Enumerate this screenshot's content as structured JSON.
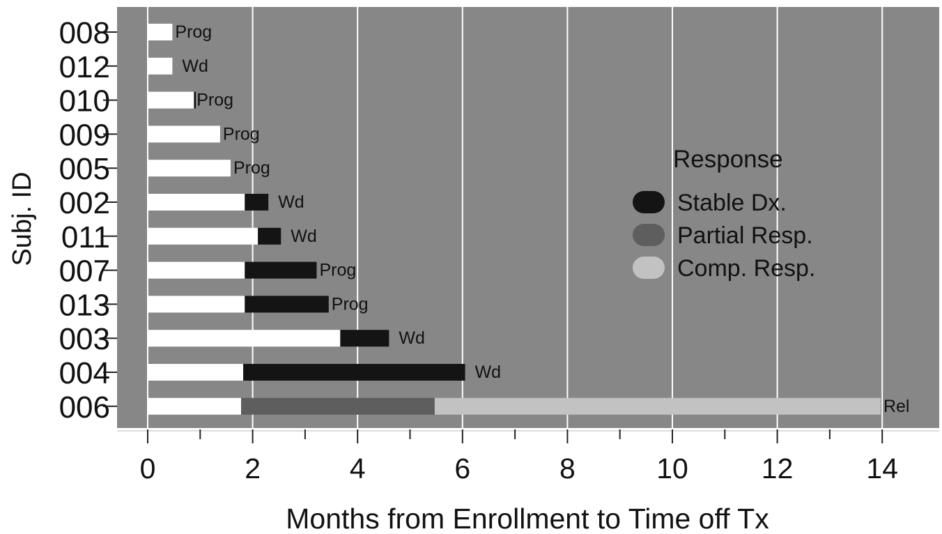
{
  "chart_data": {
    "type": "bar",
    "orientation": "horizontal-stacked",
    "xlabel": "Months from Enrollment to Time off Tx",
    "ylabel": "Subj. ID",
    "xlim": [
      -0.6,
      15.1
    ],
    "xticks_major": [
      0,
      2,
      4,
      6,
      8,
      10,
      12,
      14
    ],
    "xticks_minor": [
      1,
      3,
      5,
      7,
      9,
      11,
      13
    ],
    "grid": true,
    "legend": {
      "title": "Response",
      "placement": "center-right",
      "entries": [
        "Stable Dx.",
        "Partial Resp.",
        "Comp. Resp."
      ]
    },
    "colors": {
      "panel": "#878787",
      "grid": "#ffffff",
      "treatment": "#ffffff",
      "Stable Dx.": "#141414",
      "Partial Resp.": "#5e5e5e",
      "Comp. Resp.": "#c2c2c2"
    },
    "subjects": [
      {
        "id": "008",
        "segments": [
          {
            "type": "treatment",
            "start": 0,
            "end": 0.47
          }
        ],
        "outcome": "Prog",
        "marker": null
      },
      {
        "id": "012",
        "segments": [
          {
            "type": "treatment",
            "start": 0,
            "end": 0.47
          }
        ],
        "outcome": "Wd",
        "marker": null
      },
      {
        "id": "010",
        "segments": [
          {
            "type": "treatment",
            "start": 0,
            "end": 0.88
          }
        ],
        "outcome": "Prog",
        "marker": 0.9
      },
      {
        "id": "009",
        "segments": [
          {
            "type": "treatment",
            "start": 0,
            "end": 1.38
          }
        ],
        "outcome": "Prog",
        "marker": null
      },
      {
        "id": "005",
        "segments": [
          {
            "type": "treatment",
            "start": 0,
            "end": 1.58
          }
        ],
        "outcome": "Prog",
        "marker": null
      },
      {
        "id": "002",
        "segments": [
          {
            "type": "treatment",
            "start": 0,
            "end": 1.85
          },
          {
            "type": "Stable Dx.",
            "start": 1.85,
            "end": 2.3
          }
        ],
        "outcome": "Wd",
        "marker": null
      },
      {
        "id": "011",
        "segments": [
          {
            "type": "treatment",
            "start": 0,
            "end": 2.1
          },
          {
            "type": "Stable Dx.",
            "start": 2.1,
            "end": 2.54
          }
        ],
        "outcome": "Wd",
        "marker": null
      },
      {
        "id": "007",
        "segments": [
          {
            "type": "treatment",
            "start": 0,
            "end": 1.85
          },
          {
            "type": "Stable Dx.",
            "start": 1.85,
            "end": 3.22
          }
        ],
        "outcome": "Prog",
        "marker": null
      },
      {
        "id": "013",
        "segments": [
          {
            "type": "treatment",
            "start": 0,
            "end": 1.85
          },
          {
            "type": "Stable Dx.",
            "start": 1.85,
            "end": 3.45
          }
        ],
        "outcome": "Prog",
        "marker": null
      },
      {
        "id": "003",
        "segments": [
          {
            "type": "treatment",
            "start": 0,
            "end": 3.67
          },
          {
            "type": "Stable Dx.",
            "start": 3.67,
            "end": 4.6
          }
        ],
        "outcome": "Wd",
        "marker": null
      },
      {
        "id": "004",
        "segments": [
          {
            "type": "treatment",
            "start": 0,
            "end": 1.82
          },
          {
            "type": "Stable Dx.",
            "start": 1.82,
            "end": 6.05
          }
        ],
        "outcome": "Wd",
        "marker": null
      },
      {
        "id": "006",
        "segments": [
          {
            "type": "treatment",
            "start": 0,
            "end": 1.78
          },
          {
            "type": "Partial Resp.",
            "start": 1.78,
            "end": 5.47
          },
          {
            "type": "Comp. Resp.",
            "start": 5.47,
            "end": 13.97
          }
        ],
        "outcome": "Rel",
        "marker": null
      }
    ]
  }
}
